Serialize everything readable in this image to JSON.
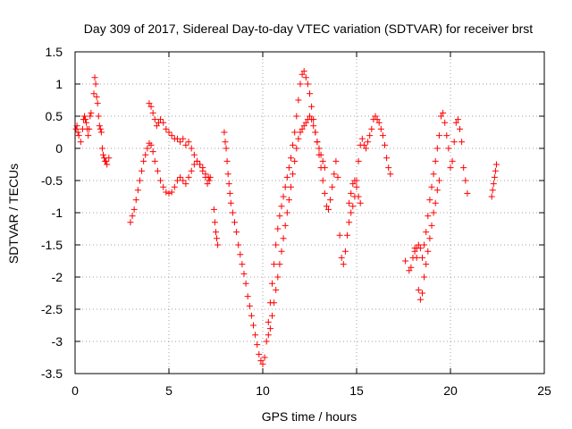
{
  "chart_data": {
    "type": "scatter",
    "title": "Day 309 of 2017, Sidereal Day-to-day VTEC variation (SDTVAR) for receiver brst",
    "xlabel": "GPS time / hours",
    "ylabel": "SDTVAR / TECUs",
    "xlim": [
      0,
      25
    ],
    "ylim": [
      -3.5,
      1.5
    ],
    "xticks": [
      0,
      5,
      10,
      15,
      20,
      25
    ],
    "yticks": [
      -3.5,
      -3,
      -2.5,
      -2,
      -1.5,
      -1,
      -0.5,
      0,
      0.5,
      1,
      1.5
    ],
    "xtick_labels": [
      "0",
      "5",
      "10",
      "15",
      "20",
      "25"
    ],
    "ytick_labels": [
      "-3.5",
      "-3",
      "-2.5",
      "-2",
      "-1.5",
      "-1",
      "-0.5",
      "0",
      "0.5",
      "1",
      "1.5"
    ],
    "grid": true,
    "marker": "+",
    "marker_color": "#ff0000",
    "series": [
      {
        "name": "SDTVAR brst",
        "x": [
          0.05,
          0.1,
          0.15,
          0.2,
          0.3,
          0.4,
          0.45,
          0.5,
          0.55,
          0.6,
          0.65,
          0.7,
          0.75,
          0.8,
          0.85,
          1.0,
          1.05,
          1.1,
          1.15,
          1.2,
          1.25,
          1.3,
          1.35,
          1.4,
          1.45,
          1.5,
          1.55,
          1.6,
          1.65,
          1.7,
          1.8,
          2.95,
          3.05,
          3.15,
          3.25,
          3.35,
          3.45,
          3.55,
          3.65,
          3.75,
          3.85,
          3.95,
          4.05,
          4.15,
          4.25,
          4.4,
          4.55,
          4.7,
          4.85,
          5.0,
          5.15,
          5.3,
          5.45,
          5.6,
          5.75,
          5.9,
          6.05,
          6.2,
          6.35,
          6.5,
          6.65,
          6.8,
          6.95,
          7.05,
          7.15,
          7.2,
          3.95,
          4.05,
          4.15,
          4.25,
          4.35,
          4.45,
          4.55,
          4.7,
          4.85,
          5.0,
          5.15,
          5.3,
          5.45,
          5.6,
          5.75,
          5.9,
          6.05,
          6.2,
          6.35,
          6.5,
          6.65,
          6.8,
          6.95,
          7.1,
          7.4,
          7.45,
          7.5,
          7.55,
          7.6,
          7.95,
          8.0,
          8.05,
          8.1,
          8.15,
          8.2,
          8.25,
          8.3,
          8.4,
          8.5,
          8.6,
          8.7,
          8.8,
          8.9,
          9.0,
          9.1,
          9.2,
          9.3,
          9.4,
          9.5,
          9.6,
          9.7,
          9.8,
          9.9,
          10.0,
          10.1,
          10.2,
          10.3,
          10.4,
          10.5,
          10.6,
          10.7,
          10.8,
          10.9,
          11.0,
          11.1,
          11.2,
          11.3,
          11.4,
          11.5,
          11.6,
          11.7,
          11.8,
          11.9,
          12.0,
          12.1,
          12.2,
          12.3,
          12.4,
          12.5,
          12.6,
          12.7,
          12.8,
          12.9,
          13.0,
          13.1,
          13.2,
          13.3,
          10.3,
          10.4,
          10.5,
          10.6,
          10.7,
          10.8,
          10.9,
          11.0,
          11.1,
          11.2,
          11.3,
          11.4,
          11.5,
          11.6,
          11.7,
          11.8,
          11.9,
          12.0,
          12.1,
          12.2,
          12.3,
          12.4,
          12.5,
          12.6,
          12.7,
          12.8,
          12.9,
          13.0,
          13.1,
          13.2,
          13.3,
          13.4,
          13.5,
          13.6,
          13.7,
          13.8,
          13.9,
          14.0,
          14.1,
          14.2,
          14.3,
          14.4,
          14.5,
          14.6,
          14.7,
          14.8,
          14.9,
          15.0,
          15.1,
          15.2,
          15.3,
          15.4,
          15.5,
          15.6,
          15.7,
          15.8,
          15.9,
          16.0,
          16.1,
          16.2,
          16.3,
          16.4,
          16.5,
          16.6,
          16.7,
          16.8,
          14.6,
          14.7,
          14.8,
          14.9,
          15.0,
          15.1,
          15.2,
          17.6,
          17.8,
          17.9,
          18.0,
          18.1,
          18.2,
          18.3,
          18.4,
          18.5,
          18.6,
          18.7,
          18.8,
          18.9,
          19.0,
          19.1,
          19.2,
          19.3,
          19.4,
          19.5,
          19.6,
          19.7,
          19.8,
          19.9,
          20.0,
          20.1,
          20.2,
          20.3,
          20.4,
          20.5,
          20.6,
          20.7,
          20.8,
          20.9,
          18.1,
          18.2,
          18.3,
          18.4,
          18.5,
          18.6,
          18.7,
          18.8,
          18.9,
          19.0,
          19.1,
          19.2,
          19.3,
          19.4,
          22.2,
          22.25,
          22.3,
          22.35,
          22.4,
          22.45
        ],
        "y": [
          0.3,
          0.35,
          0.25,
          0.2,
          0.1,
          0.3,
          0.45,
          0.5,
          0.45,
          0.4,
          0.3,
          0.2,
          0.3,
          0.5,
          0.55,
          0.85,
          1.1,
          1.0,
          0.8,
          0.7,
          0.5,
          0.35,
          0.3,
          0.25,
          0.0,
          -0.1,
          -0.15,
          -0.2,
          -0.2,
          -0.25,
          -0.15,
          -1.15,
          -1.05,
          -0.95,
          -0.8,
          -0.65,
          -0.5,
          -0.35,
          -0.2,
          -0.1,
          0.0,
          0.08,
          0.05,
          -0.05,
          -0.2,
          -0.35,
          -0.5,
          -0.6,
          -0.68,
          -0.7,
          -0.68,
          -0.6,
          -0.5,
          -0.45,
          -0.5,
          -0.55,
          -0.45,
          -0.35,
          -0.25,
          -0.2,
          -0.25,
          -0.35,
          -0.45,
          -0.55,
          -0.5,
          -0.45,
          0.7,
          0.65,
          0.55,
          0.45,
          0.35,
          0.4,
          0.45,
          0.4,
          0.3,
          0.25,
          0.2,
          0.15,
          0.15,
          0.1,
          0.15,
          0.05,
          0.1,
          0.0,
          -0.1,
          -0.2,
          -0.25,
          -0.3,
          -0.4,
          -0.45,
          -0.95,
          -1.15,
          -1.3,
          -1.4,
          -1.5,
          0.25,
          0.1,
          0.0,
          -0.2,
          -0.4,
          -0.55,
          -0.7,
          -0.85,
          -1.0,
          -1.15,
          -1.3,
          -1.5,
          -1.65,
          -1.8,
          -1.95,
          -2.1,
          -2.3,
          -2.45,
          -2.6,
          -2.75,
          -2.9,
          -3.05,
          -3.2,
          -3.3,
          -3.35,
          -3.25,
          -3.0,
          -2.7,
          -2.4,
          -2.1,
          -1.8,
          -1.5,
          -1.25,
          -1.05,
          -0.9,
          -0.75,
          -0.6,
          -0.45,
          -0.3,
          -0.15,
          0.05,
          0.25,
          0.5,
          0.75,
          1.0,
          1.15,
          1.2,
          1.1,
          1.0,
          0.85,
          0.65,
          0.45,
          0.25,
          0.1,
          0.0,
          -0.1,
          -0.2,
          -0.3,
          -2.9,
          -2.8,
          -2.6,
          -2.4,
          -2.2,
          -2.0,
          -1.8,
          -1.6,
          -1.4,
          -1.2,
          -1.0,
          -0.8,
          -0.6,
          -0.4,
          -0.2,
          0.0,
          0.15,
          0.25,
          0.3,
          0.35,
          0.4,
          0.45,
          0.5,
          0.45,
          0.35,
          0.25,
          0.1,
          -0.1,
          -0.3,
          -0.5,
          -0.7,
          -0.9,
          -0.95,
          -0.8,
          -0.6,
          -0.4,
          -0.2,
          -0.45,
          -1.35,
          -1.7,
          -1.8,
          -1.6,
          -1.35,
          -1.15,
          -1.0,
          -0.9,
          -0.75,
          -0.5,
          -0.2,
          0.05,
          0.15,
          0.05,
          0.0,
          0.1,
          0.2,
          0.3,
          0.45,
          0.5,
          0.45,
          0.4,
          0.3,
          0.2,
          0.05,
          -0.15,
          -0.3,
          -0.4,
          -0.85,
          -0.7,
          -0.55,
          -0.5,
          -0.6,
          -0.75,
          -0.85,
          -1.75,
          -1.9,
          -1.85,
          -1.7,
          -1.6,
          -1.55,
          -1.5,
          -1.55,
          -1.7,
          -1.5,
          -1.3,
          -1.05,
          -0.8,
          -0.6,
          -0.4,
          -0.2,
          0.0,
          0.2,
          0.5,
          0.55,
          0.4,
          0.2,
          0.0,
          -0.3,
          -0.2,
          0.1,
          0.4,
          0.45,
          0.3,
          0.1,
          -0.3,
          -0.5,
          -0.7,
          -1.55,
          -1.7,
          -2.2,
          -2.35,
          -2.25,
          -2.0,
          -1.8,
          -1.6,
          -1.4,
          -1.2,
          -1.0,
          -0.85,
          -0.65,
          -0.5,
          -0.75,
          -0.65,
          -0.55,
          -0.45,
          -0.35,
          -0.25
        ]
      }
    ]
  }
}
